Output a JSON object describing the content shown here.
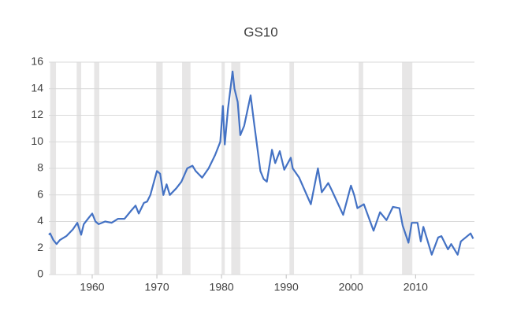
{
  "chart_data": {
    "type": "line",
    "title": "GS10",
    "x": [
      1953.3,
      1953.5,
      1954.0,
      1954.5,
      1955,
      1956,
      1957,
      1957.7,
      1958.3,
      1958.7,
      1959.5,
      1960.0,
      1960.5,
      1961,
      1962,
      1963,
      1964,
      1965,
      1966,
      1966.7,
      1967.2,
      1968,
      1968.5,
      1969,
      1970,
      1970.5,
      1971,
      1971.5,
      1972,
      1973,
      1973.8,
      1974.7,
      1975.5,
      1976,
      1977,
      1978,
      1979,
      1979.8,
      1980.2,
      1980.5,
      1981,
      1981.7,
      1982,
      1982.5,
      1982.9,
      1983.5,
      1984.5,
      1985,
      1986,
      1986.5,
      1987,
      1987.8,
      1988.3,
      1989,
      1989.7,
      1990.7,
      1991,
      1992,
      1993.8,
      1994.9,
      1995.5,
      1996.5,
      1997,
      1998.8,
      2000,
      2000.5,
      2001,
      2002,
      2003.5,
      2004.5,
      2005.5,
      2006.5,
      2007.5,
      2008,
      2008.9,
      2009.4,
      2010.3,
      2010.8,
      2011.2,
      2012.5,
      2013.5,
      2014,
      2015,
      2015.5,
      2016.5,
      2017,
      2018.5,
      2018.9
    ],
    "series": [
      {
        "name": "GS10",
        "color": "#4472c4",
        "values": [
          3.0,
          3.1,
          2.6,
          2.3,
          2.6,
          2.9,
          3.4,
          3.9,
          3.0,
          3.8,
          4.3,
          4.6,
          4.0,
          3.8,
          4.0,
          3.9,
          4.2,
          4.2,
          4.8,
          5.2,
          4.6,
          5.4,
          5.5,
          6.0,
          7.8,
          7.6,
          6.0,
          6.8,
          6.0,
          6.5,
          7.0,
          8.0,
          8.2,
          7.8,
          7.3,
          8.0,
          9.0,
          10.0,
          12.7,
          9.8,
          12.5,
          15.3,
          14.0,
          13.0,
          10.5,
          11.2,
          13.5,
          11.5,
          7.8,
          7.2,
          7.0,
          9.4,
          8.4,
          9.3,
          7.9,
          8.8,
          8.0,
          7.3,
          5.3,
          8.0,
          6.2,
          6.9,
          6.4,
          4.5,
          6.7,
          6.0,
          5.0,
          5.3,
          3.3,
          4.7,
          4.1,
          5.1,
          5.0,
          3.7,
          2.4,
          3.9,
          3.9,
          2.5,
          3.6,
          1.5,
          2.8,
          2.9,
          1.9,
          2.3,
          1.5,
          2.5,
          3.1,
          2.7
        ]
      }
    ],
    "shaded_ranges": [
      [
        1953.5,
        1954.4
      ],
      [
        1957.6,
        1958.3
      ],
      [
        1960.3,
        1961.1
      ],
      [
        1969.9,
        1970.9
      ],
      [
        1973.9,
        1975.2
      ],
      [
        1980.0,
        1980.5
      ],
      [
        1981.5,
        1982.9
      ],
      [
        1990.5,
        1991.2
      ],
      [
        2001.2,
        2001.9
      ],
      [
        2007.9,
        2009.5
      ]
    ],
    "shade_color": "#e7e6e6",
    "xlim": [
      1953.3,
      2019.1
    ],
    "xticks": [
      1960,
      1970,
      1980,
      1990,
      2000,
      2010
    ],
    "ylim": [
      0,
      16
    ],
    "yticks": [
      0,
      2,
      4,
      6,
      8,
      10,
      12,
      14,
      16
    ],
    "grid": true
  }
}
